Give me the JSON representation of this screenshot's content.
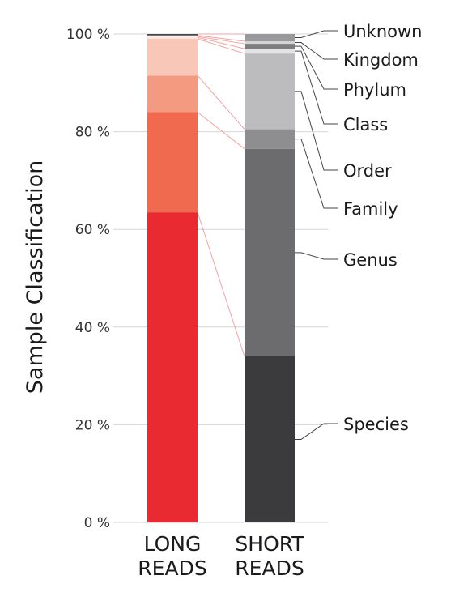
{
  "chart_data": {
    "type": "bar",
    "stacked": true,
    "ylabel": "Sample Classification",
    "ylim": [
      0,
      100
    ],
    "yticks": [
      "0 %",
      "20 %",
      "40 %",
      "60 %",
      "80 %",
      "100 %"
    ],
    "categories": [
      "LONG\nREADS",
      "SHORT\nREADS"
    ],
    "grid": true,
    "legend": "right",
    "series": [
      {
        "name": "Species",
        "values": [
          63.5,
          34.0
        ],
        "colors": [
          "#ea2a31",
          "#3b3b3d"
        ]
      },
      {
        "name": "Genus",
        "values": [
          20.5,
          42.5
        ],
        "colors": [
          "#f06a50",
          "#6c6c6e"
        ]
      },
      {
        "name": "Family",
        "values": [
          7.5,
          4.0
        ],
        "colors": [
          "#f49a80",
          "#8e8e90"
        ]
      },
      {
        "name": "Order",
        "values": [
          7.5,
          15.5
        ],
        "colors": [
          "#f8c7b8",
          "#bcbcbe"
        ]
      },
      {
        "name": "Class",
        "values": [
          0.3,
          1.0
        ],
        "colors": [
          "#fbe2da",
          "#e3e3e4"
        ]
      },
      {
        "name": "Phylum",
        "values": [
          0.2,
          1.0
        ],
        "colors": [
          "#fdf0ec",
          "#7d7d7f"
        ]
      },
      {
        "name": "Kingdom",
        "values": [
          0.2,
          0.5
        ],
        "colors": [
          "#fef7f5",
          "#d4d4d5"
        ]
      },
      {
        "name": "Unknown",
        "values": [
          0.3,
          1.5
        ],
        "colors": [
          "#4a4a4c",
          "#9a9a9c"
        ]
      }
    ]
  }
}
